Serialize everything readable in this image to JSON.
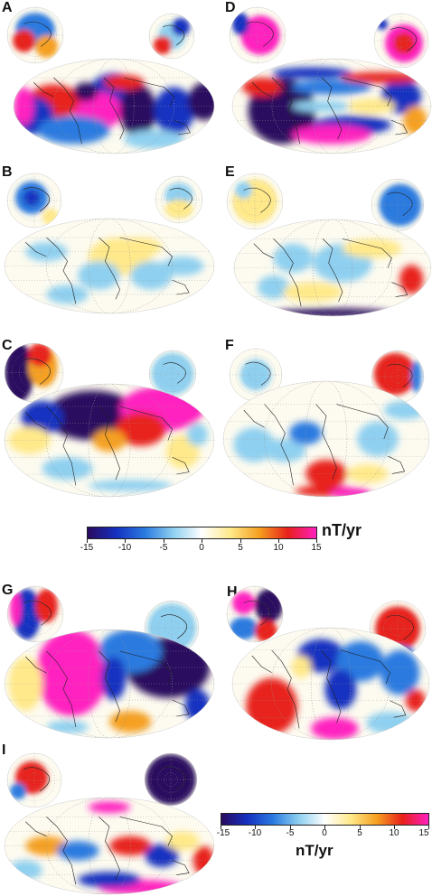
{
  "panels": [
    {
      "id": "A",
      "label": "A"
    },
    {
      "id": "B",
      "label": "B"
    },
    {
      "id": "C",
      "label": "C"
    },
    {
      "id": "D",
      "label": "D"
    },
    {
      "id": "E",
      "label": "E"
    },
    {
      "id": "F",
      "label": "F"
    },
    {
      "id": "G",
      "label": "G"
    },
    {
      "id": "H",
      "label": "H"
    },
    {
      "id": "I",
      "label": "I"
    }
  ],
  "colorbar_top": {
    "ticks": [
      "-15",
      "-10",
      "-5",
      "0",
      "5",
      "10",
      "15"
    ],
    "unit": "nT/yr",
    "range": [
      -15,
      15
    ]
  },
  "colorbar_bottom": {
    "ticks": [
      "-15",
      "-10",
      "-5",
      "0",
      "5",
      "10",
      "15"
    ],
    "unit": "nT/yr",
    "range": [
      -15,
      15
    ]
  },
  "colormap": [
    "#2a0a5e",
    "#1530c0",
    "#2a7ae0",
    "#8fd0f0",
    "#ffffff",
    "#ffe98a",
    "#f5a020",
    "#e8201a",
    "#ff20c0"
  ]
}
